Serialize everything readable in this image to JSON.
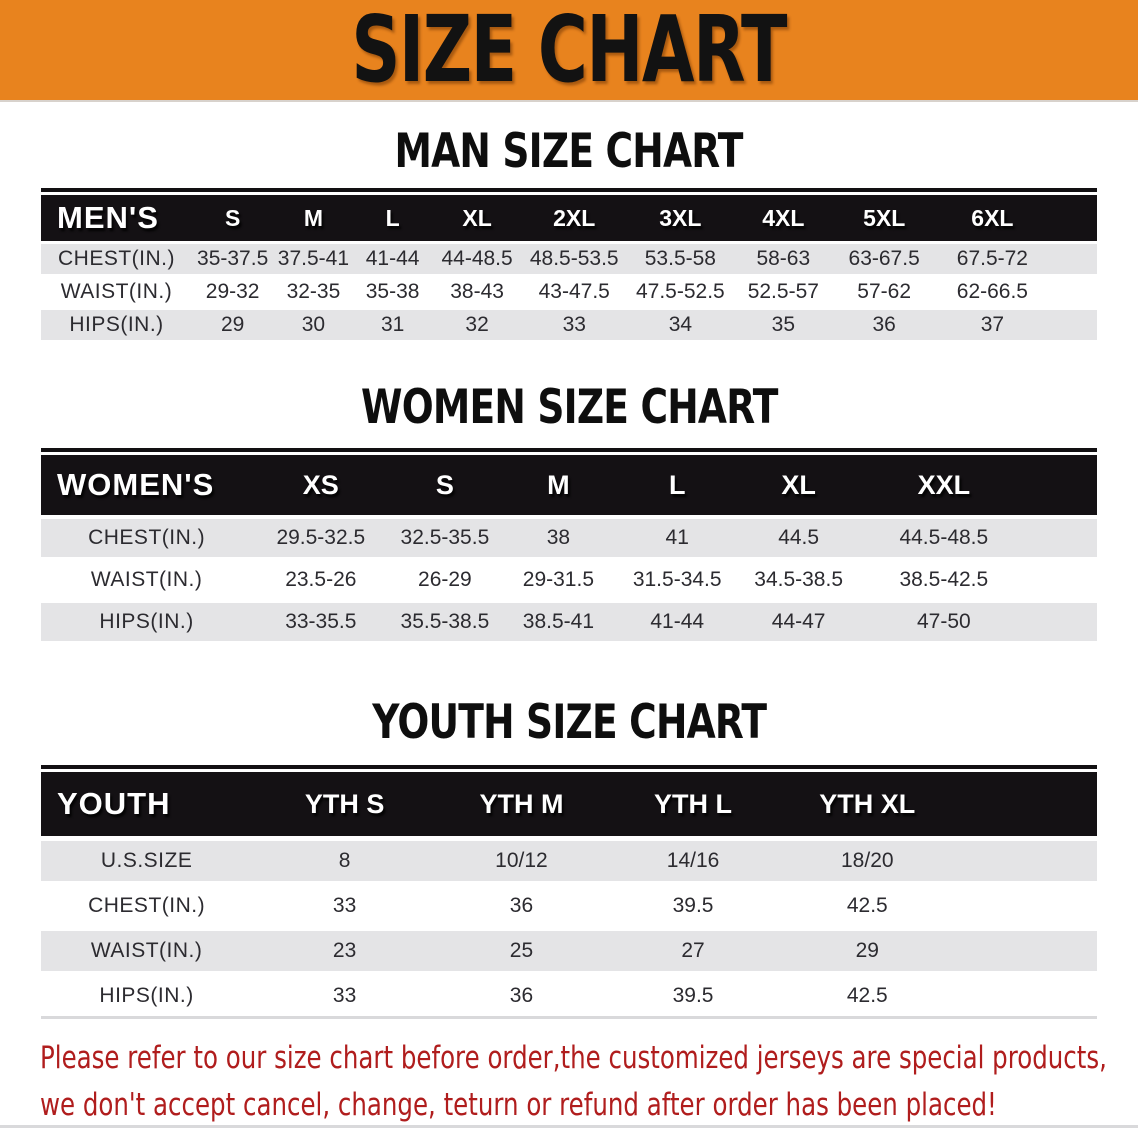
{
  "banner": {
    "title": "SIZE CHART"
  },
  "colors": {
    "banner_bg": "#E8831E",
    "header_bg": "#141114",
    "row_gray": "#E4E4E6",
    "row_white": "#FFFFFF",
    "note_red": "#B01D1D",
    "text_dark": "#2C2B30"
  },
  "sections": [
    {
      "id": "men",
      "heading": "MAN SIZE CHART",
      "table": {
        "label": "MEN'S",
        "columns": [
          "S",
          "M",
          "L",
          "XL",
          "2XL",
          "3XL",
          "4XL",
          "5XL",
          "6XL"
        ],
        "rows": [
          {
            "label": "CHEST(IN.)",
            "values": [
              "35-37.5",
              "37.5-41",
              "41-44",
              "44-48.5",
              "48.5-53.5",
              "53.5-58",
              "58-63",
              "63-67.5",
              "67.5-72"
            ]
          },
          {
            "label": "WAIST(IN.)",
            "values": [
              "29-32",
              "32-35",
              "35-38",
              "38-43",
              "43-47.5",
              "47.5-52.5",
              "52.5-57",
              "57-62",
              "62-66.5"
            ]
          },
          {
            "label": "HIPS(IN.)",
            "values": [
              "29",
              "30",
              "31",
              "32",
              "33",
              "34",
              "35",
              "36",
              "37"
            ]
          }
        ]
      }
    },
    {
      "id": "women",
      "heading": "WOMEN SIZE CHART",
      "table": {
        "label": "WOMEN'S",
        "columns": [
          "XS",
          "S",
          "M",
          "L",
          "XL",
          "XXL"
        ],
        "rows": [
          {
            "label": "CHEST(IN.)",
            "values": [
              "29.5-32.5",
              "32.5-35.5",
              "38",
              "41",
              "44.5",
              "44.5-48.5"
            ]
          },
          {
            "label": "WAIST(IN.)",
            "values": [
              "23.5-26",
              "26-29",
              "29-31.5",
              "31.5-34.5",
              "34.5-38.5",
              "38.5-42.5"
            ]
          },
          {
            "label": "HIPS(IN.)",
            "values": [
              "33-35.5",
              "35.5-38.5",
              "38.5-41",
              "41-44",
              "44-47",
              "47-50"
            ]
          }
        ]
      }
    },
    {
      "id": "youth",
      "heading": "YOUTH SIZE CHART",
      "table": {
        "label": "YOUTH",
        "columns": [
          "YTH S",
          "YTH M",
          "YTH L",
          "YTH XL"
        ],
        "rows": [
          {
            "label": "U.S.SIZE",
            "values": [
              "8",
              "10/12",
              "14/16",
              "18/20"
            ]
          },
          {
            "label": "CHEST(IN.)",
            "values": [
              "33",
              "36",
              "39.5",
              "42.5"
            ]
          },
          {
            "label": "WAIST(IN.)",
            "values": [
              "23",
              "25",
              "27",
              "29"
            ]
          },
          {
            "label": "HIPS(IN.)",
            "values": [
              "33",
              "36",
              "39.5",
              "42.5"
            ]
          }
        ]
      }
    }
  ],
  "footer": {
    "line1": "Please refer to our size chart before order,the customized jerseys are special products,",
    "line2": "we don't accept cancel, change, teturn or refund after order has been placed!"
  }
}
